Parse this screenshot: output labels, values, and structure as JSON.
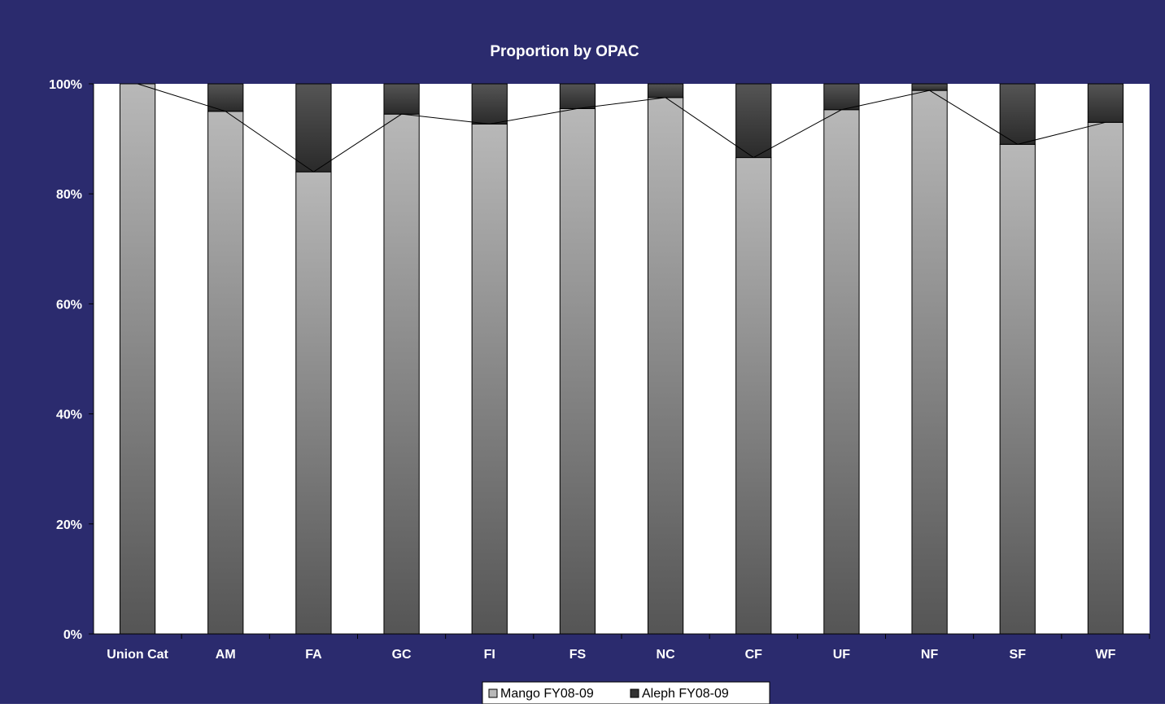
{
  "chart_data": {
    "type": "bar",
    "stacked": true,
    "percent_stacked": true,
    "title": "Proportion by OPAC",
    "xlabel": "",
    "ylabel": "",
    "ylim": [
      0,
      100
    ],
    "y_ticks": [
      "0%",
      "20%",
      "40%",
      "60%",
      "80%",
      "100%"
    ],
    "grid": false,
    "legend_position": "bottom",
    "categories": [
      "Union Cat",
      "AM",
      "FA",
      "GC",
      "FI",
      "FS",
      "NC",
      "CF",
      "UF",
      "NF",
      "SF",
      "WF"
    ],
    "series": [
      {
        "name": "Mango FY08-09",
        "values": [
          100,
          95,
          84,
          94.5,
          92.7,
          95.5,
          97.5,
          86.6,
          95.3,
          98.8,
          89,
          93
        ]
      },
      {
        "name": "Aleph FY08-09",
        "values": [
          0,
          5,
          16,
          5.5,
          7.3,
          4.5,
          2.5,
          13.4,
          4.7,
          1.2,
          11,
          7
        ]
      }
    ],
    "series_line": "Mango FY08-09",
    "colors": {
      "frame_background": "#2b2b6e",
      "plot_background": "#ffffff",
      "text": "#ffffff",
      "mango_top": "#b8b8b8",
      "mango_bottom": "#555555",
      "aleph_top": "#555555",
      "aleph_bottom": "#2a2a2a",
      "line": "#000000"
    }
  }
}
